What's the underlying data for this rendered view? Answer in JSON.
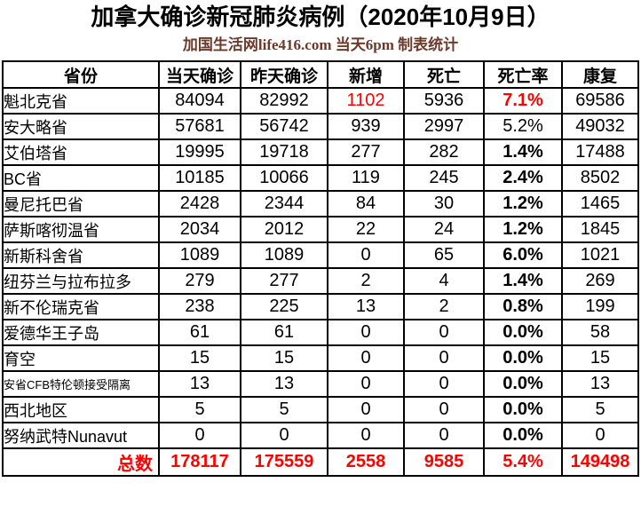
{
  "chart_data": {
    "type": "table",
    "title": "加拿大确诊新冠肺炎病例（2020年10月9日）",
    "subtitle": "加国生活网life416.com 当天6pm 制表统计",
    "columns": [
      "省份",
      "当天确诊",
      "昨天确诊",
      "新增",
      "死亡",
      "死亡率",
      "康复"
    ],
    "rows": [
      {
        "province": "魁北克省",
        "today": 84094,
        "yesterday": 82992,
        "new": 1102,
        "deaths": 5936,
        "rate": "7.1%",
        "recovered": 69586,
        "new_red": true,
        "rate_red": true,
        "rate_bold": true,
        "small_label": false
      },
      {
        "province": "安大略省",
        "today": 57681,
        "yesterday": 56742,
        "new": 939,
        "deaths": 2997,
        "rate": "5.2%",
        "recovered": 49032,
        "new_red": false,
        "rate_red": false,
        "rate_bold": false,
        "small_label": false
      },
      {
        "province": "艾伯塔省",
        "today": 19995,
        "yesterday": 19718,
        "new": 277,
        "deaths": 282,
        "rate": "1.4%",
        "recovered": 17488,
        "new_red": false,
        "rate_red": false,
        "rate_bold": true,
        "small_label": false
      },
      {
        "province": "BC省",
        "today": 10185,
        "yesterday": 10066,
        "new": 119,
        "deaths": 245,
        "rate": "2.4%",
        "recovered": 8502,
        "new_red": false,
        "rate_red": false,
        "rate_bold": true,
        "small_label": false
      },
      {
        "province": "曼尼托巴省",
        "today": 2428,
        "yesterday": 2344,
        "new": 84,
        "deaths": 30,
        "rate": "1.2%",
        "recovered": 1465,
        "new_red": false,
        "rate_red": false,
        "rate_bold": true,
        "small_label": false
      },
      {
        "province": "萨斯喀彻温省",
        "today": 2034,
        "yesterday": 2012,
        "new": 22,
        "deaths": 24,
        "rate": "1.2%",
        "recovered": 1845,
        "new_red": false,
        "rate_red": false,
        "rate_bold": true,
        "small_label": false
      },
      {
        "province": "新斯科舍省",
        "today": 1089,
        "yesterday": 1089,
        "new": 0,
        "deaths": 65,
        "rate": "6.0%",
        "recovered": 1021,
        "new_red": false,
        "rate_red": false,
        "rate_bold": true,
        "small_label": false
      },
      {
        "province": "纽芬兰与拉布拉多",
        "today": 279,
        "yesterday": 277,
        "new": 2,
        "deaths": 4,
        "rate": "1.4%",
        "recovered": 269,
        "new_red": false,
        "rate_red": false,
        "rate_bold": true,
        "small_label": false
      },
      {
        "province": "新不伦瑞克省",
        "today": 238,
        "yesterday": 225,
        "new": 13,
        "deaths": 2,
        "rate": "0.8%",
        "recovered": 199,
        "new_red": false,
        "rate_red": false,
        "rate_bold": true,
        "small_label": false
      },
      {
        "province": "爱德华王子岛",
        "today": 61,
        "yesterday": 61,
        "new": 0,
        "deaths": 0,
        "rate": "0.0%",
        "recovered": 58,
        "new_red": false,
        "rate_red": false,
        "rate_bold": true,
        "small_label": false
      },
      {
        "province": "育空",
        "today": 15,
        "yesterday": 15,
        "new": 0,
        "deaths": 0,
        "rate": "0.0%",
        "recovered": 15,
        "new_red": false,
        "rate_red": false,
        "rate_bold": true,
        "small_label": false
      },
      {
        "province": "安省CFB特伦顿接受隔离",
        "today": 13,
        "yesterday": 13,
        "new": 0,
        "deaths": 0,
        "rate": "0.0%",
        "recovered": 13,
        "new_red": false,
        "rate_red": false,
        "rate_bold": true,
        "small_label": true
      },
      {
        "province": "西北地区",
        "today": 5,
        "yesterday": 5,
        "new": 0,
        "deaths": 0,
        "rate": "0.0%",
        "recovered": 5,
        "new_red": false,
        "rate_red": false,
        "rate_bold": true,
        "small_label": false
      },
      {
        "province": "努纳武特Nunavut",
        "today": 0,
        "yesterday": 0,
        "new": 0,
        "deaths": 0,
        "rate": "0.0%",
        "recovered": 0,
        "new_red": false,
        "rate_red": false,
        "rate_bold": true,
        "small_label": false
      }
    ],
    "total": {
      "label": "总数",
      "today": 178117,
      "yesterday": 175559,
      "new": 2558,
      "deaths": 9585,
      "rate": "5.4%",
      "recovered": 149498
    },
    "layout": {
      "grid": true,
      "legend": false
    }
  },
  "colors": {
    "highlight_red": "#ff0000",
    "subtitle_text": "#6b3a2a",
    "border": "#000000"
  }
}
